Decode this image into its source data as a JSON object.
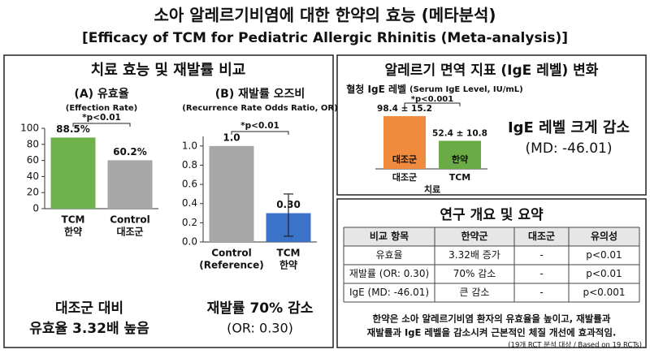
{
  "header": {
    "title": "소아 알레르기비염에 대한 한약의 효능 (메타분석)",
    "subtitle": "[Efficacy of TCM for Pediatric Allergic Rhinitis (Meta-analysis)]"
  },
  "panels": {
    "efficacy": "치료 효능 및 재발률 비교",
    "ige": "알레르기 면역 지표 (IgE 레벨) 변화",
    "summary": "연구 개요 및 요약"
  },
  "chart_data": [
    {
      "type": "bar",
      "title": "(A) 유효율",
      "subtitle": "(Effection Rate)",
      "categories": [
        [
          "TCM",
          "한약"
        ],
        [
          "Control",
          "대조군"
        ]
      ],
      "values": [
        88.5,
        60.2
      ],
      "value_labels": [
        "88.5%",
        "60.2%"
      ],
      "colors": [
        "#6db24a",
        "#a7a7a7"
      ],
      "ylim": [
        0,
        100
      ],
      "yticks": [
        0,
        20,
        40,
        60,
        80,
        100
      ],
      "annotation": "*p<0.01",
      "summary": [
        "대조군 대비",
        "유효율 3.32배 높음"
      ]
    },
    {
      "type": "bar",
      "title": "(B) 재발률 오즈비",
      "subtitle": "(Recurrence Rate Odds Ratio, OR)",
      "categories": [
        [
          "Control",
          "(Reference)"
        ],
        [
          "TCM",
          "한약"
        ]
      ],
      "values": [
        1.0,
        0.3
      ],
      "value_labels": [
        "1.0",
        "0.30"
      ],
      "ci_lower": [
        null,
        0.06
      ],
      "ci_upper": [
        null,
        0.5
      ],
      "colors": [
        "#a7a7a7",
        "#3b73c9"
      ],
      "ylim": [
        0,
        1.1
      ],
      "yticks": [
        {
          "value": 0,
          "label": "0.0"
        },
        {
          "value": 0.2,
          "label": "0.2"
        },
        {
          "value": 0.4,
          "label": "0.4"
        },
        {
          "value": 0.6,
          "label": "0.6"
        },
        {
          "value": 0.8,
          "label": "0.8"
        },
        {
          "value": 1,
          "label": "1.0"
        }
      ],
      "annotation": "*p<0.01",
      "summary": [
        "재발률 70% 감소",
        "(OR: 0.30)"
      ]
    },
    {
      "type": "bar",
      "title": "혈청 IgE 레벨",
      "subtitle": "(Serum IgE Level, IU/mL)",
      "categories": [
        "대조군",
        "TCM"
      ],
      "bar_labels": [
        "대조군",
        "한약"
      ],
      "values": [
        98.4,
        52.4
      ],
      "value_labels": [
        "98.4 ± 15.2",
        "52.4 ± 10.8"
      ],
      "colors": [
        "#f08a3c",
        "#6aab45"
      ],
      "xlabel": "치료",
      "annotation": "*p<0.001",
      "summary": [
        "IgE 레벨 크게 감소",
        "(MD: -46.01)"
      ]
    }
  ],
  "table": {
    "columns": [
      "비교 항목",
      "한약군",
      "대조군",
      "유의성"
    ],
    "rows": [
      [
        "유효율",
        "3.32배 증가",
        "-",
        "p<0.01"
      ],
      [
        "재발률 (OR: 0.30)",
        "70% 감소",
        "-",
        "p<0.01"
      ],
      [
        "IgE (MD: -46.01)",
        "큰 감소",
        "-",
        "p<0.001"
      ]
    ]
  },
  "summary_text": [
    "한약은 소아 알레르기비염 환자의 유효율을 높이고, 재발률과",
    "재발률과 IgE 레벨을 감소시켜 근본적인 체질 개선에 효과적임."
  ],
  "source_note": "(19개 RCT 분석 대상 / Based on 19 RCTs)"
}
